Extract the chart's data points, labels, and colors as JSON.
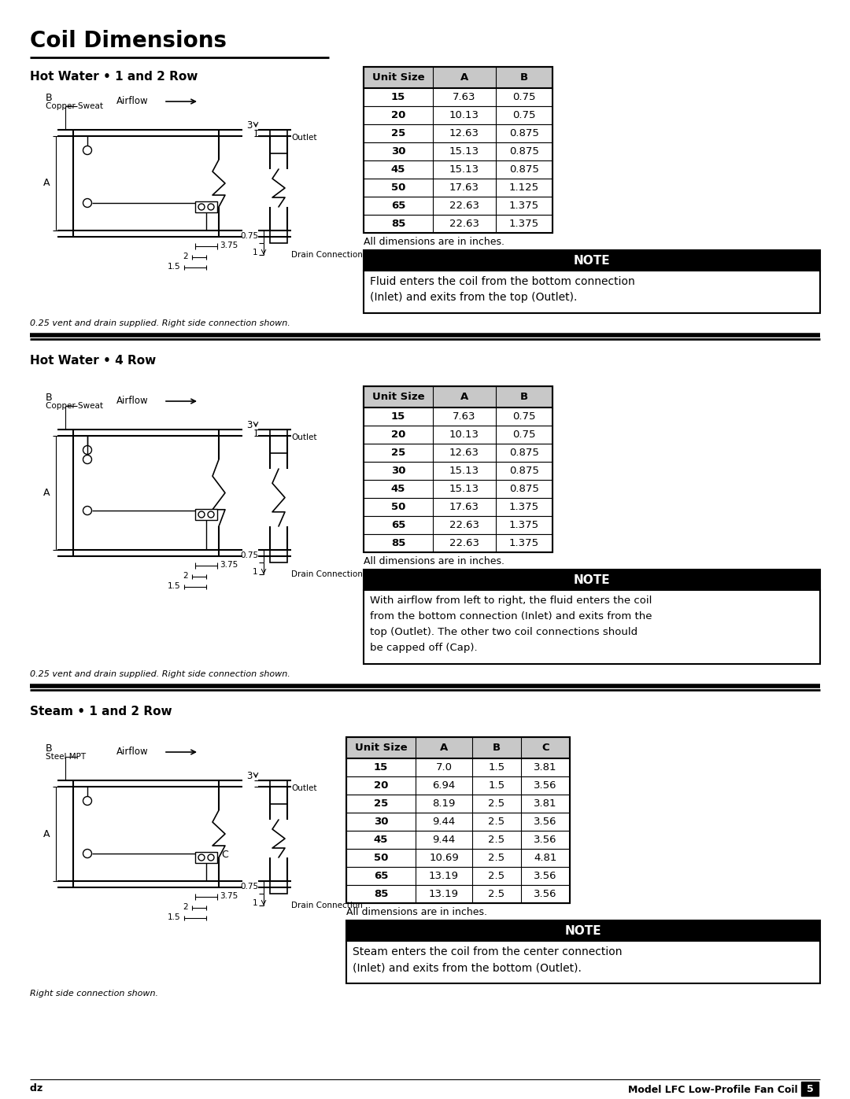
{
  "title": "Coil Dimensions",
  "page_bg": "#ffffff",
  "sections": [
    {
      "title": "Hot Water • 1 and 2 Row",
      "table_headers": [
        "Unit Size",
        "A",
        "B"
      ],
      "table_data": [
        [
          "15",
          "7.63",
          "0.75"
        ],
        [
          "20",
          "10.13",
          "0.75"
        ],
        [
          "25",
          "12.63",
          "0.875"
        ],
        [
          "30",
          "15.13",
          "0.875"
        ],
        [
          "45",
          "15.13",
          "0.875"
        ],
        [
          "50",
          "17.63",
          "1.125"
        ],
        [
          "65",
          "22.63",
          "1.375"
        ],
        [
          "85",
          "22.63",
          "1.375"
        ]
      ],
      "dim_note": "All dimensions are in inches.",
      "note_title": "NOTE",
      "note_text": "Fluid enters the coil from the bottom connection\n(Inlet) and exits from the top (Outlet).",
      "caption": "0.25 vent and drain supplied. Right side connection shown.",
      "coil_type": "hot_water_1_2",
      "has_c_col": false
    },
    {
      "title": "Hot Water • 4 Row",
      "table_headers": [
        "Unit Size",
        "A",
        "B"
      ],
      "table_data": [
        [
          "15",
          "7.63",
          "0.75"
        ],
        [
          "20",
          "10.13",
          "0.75"
        ],
        [
          "25",
          "12.63",
          "0.875"
        ],
        [
          "30",
          "15.13",
          "0.875"
        ],
        [
          "45",
          "15.13",
          "0.875"
        ],
        [
          "50",
          "17.63",
          "1.375"
        ],
        [
          "65",
          "22.63",
          "1.375"
        ],
        [
          "85",
          "22.63",
          "1.375"
        ]
      ],
      "dim_note": "All dimensions are in inches.",
      "note_title": "NOTE",
      "note_text": "With airflow from left to right, the fluid enters the coil\nfrom the bottom connection (Inlet) and exits from the\ntop (Outlet). The other two coil connections should\nbe capped off (Cap).",
      "caption": "0.25 vent and drain supplied. Right side connection shown.",
      "coil_type": "hot_water_4",
      "has_c_col": false
    },
    {
      "title": "Steam • 1 and 2 Row",
      "table_headers": [
        "Unit Size",
        "A",
        "B",
        "C"
      ],
      "table_data": [
        [
          "15",
          "7.0",
          "1.5",
          "3.81"
        ],
        [
          "20",
          "6.94",
          "1.5",
          "3.56"
        ],
        [
          "25",
          "8.19",
          "2.5",
          "3.81"
        ],
        [
          "30",
          "9.44",
          "2.5",
          "3.56"
        ],
        [
          "45",
          "9.44",
          "2.5",
          "3.56"
        ],
        [
          "50",
          "10.69",
          "2.5",
          "4.81"
        ],
        [
          "65",
          "13.19",
          "2.5",
          "3.56"
        ],
        [
          "85",
          "13.19",
          "2.5",
          "3.56"
        ]
      ],
      "dim_note": "All dimensions are in inches.",
      "note_title": "NOTE",
      "note_text": "Steam enters the coil from the center connection\n(Inlet) and exits from the bottom (Outlet).",
      "caption": "Right side connection shown.",
      "coil_type": "steam",
      "has_c_col": true
    }
  ],
  "footer_left": "ǳ",
  "footer_right": "Model LFC Low-Profile Fan Coil",
  "footer_page": "5"
}
